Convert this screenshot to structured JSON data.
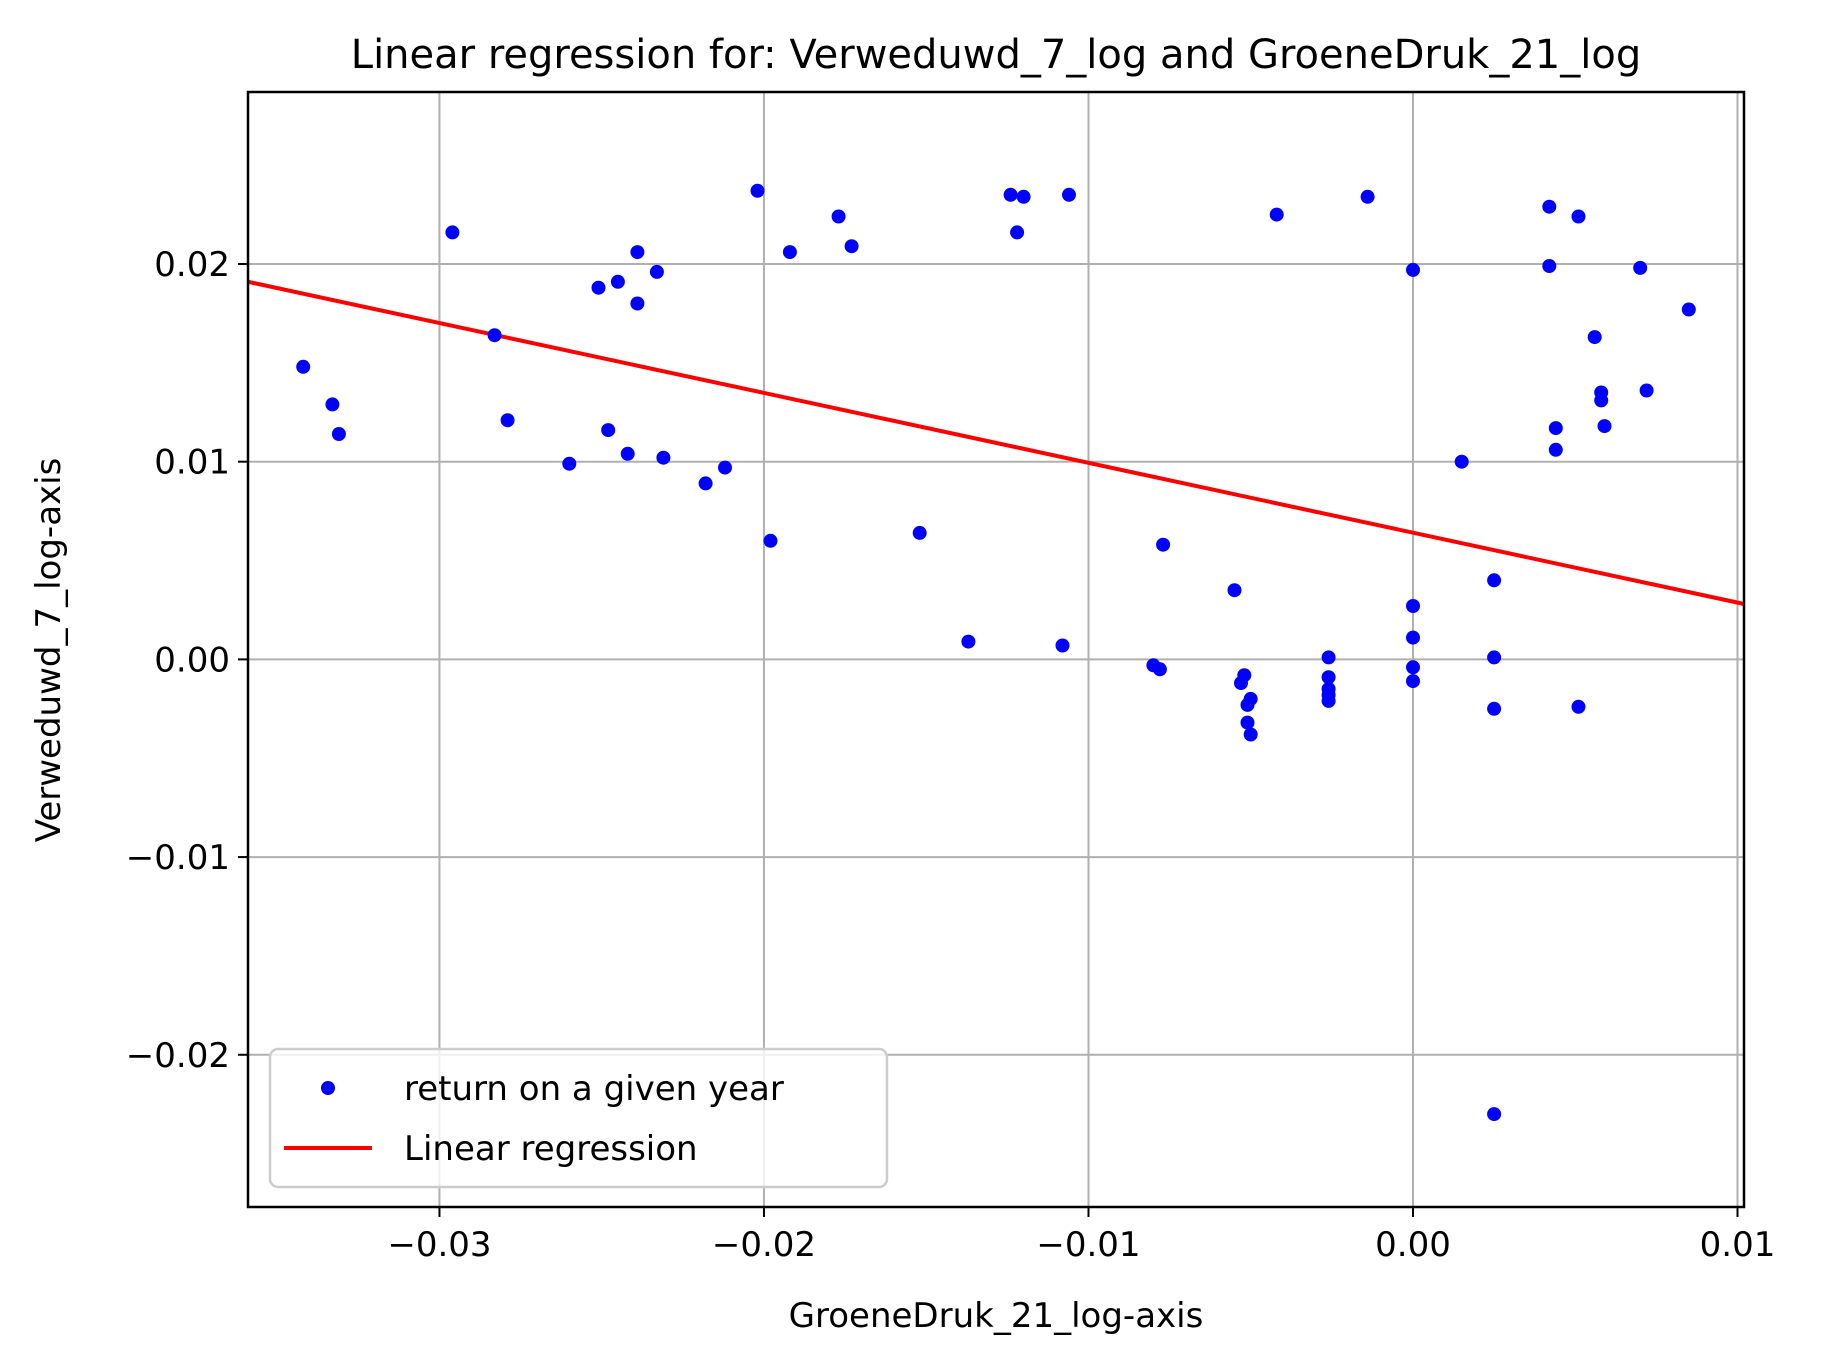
{
  "chart_data": {
    "type": "scatter",
    "title": "Linear regression for: Verweduwd_7_log and GroeneDruk_21_log",
    "xlabel": "GroeneDruk_21_log-axis",
    "ylabel": "Verweduwd_7_log-axis",
    "xlim": [
      -0.0359,
      0.0102
    ],
    "ylim": [
      -0.0277,
      0.0287
    ],
    "xticks": [
      -0.03,
      -0.02,
      -0.01,
      0.0,
      0.01
    ],
    "xtick_labels": [
      "−0.03",
      "−0.02",
      "−0.01",
      "0.00",
      "0.01"
    ],
    "yticks": [
      -0.02,
      -0.01,
      0.0,
      0.01,
      0.02
    ],
    "ytick_labels": [
      "−0.02",
      "−0.01",
      "0.00",
      "0.01",
      "0.02"
    ],
    "grid": true,
    "legend_position": "lower-left",
    "series": [
      {
        "name": "return on a given year",
        "kind": "scatter",
        "color": "#0000ff",
        "points": [
          [
            -0.0342,
            0.0148
          ],
          [
            -0.0333,
            0.0129
          ],
          [
            -0.0331,
            0.0114
          ],
          [
            -0.0296,
            0.0216
          ],
          [
            -0.0283,
            0.0164
          ],
          [
            -0.0279,
            0.0121
          ],
          [
            -0.026,
            0.0099
          ],
          [
            -0.0251,
            0.0188
          ],
          [
            -0.0248,
            0.0116
          ],
          [
            -0.0245,
            0.0191
          ],
          [
            -0.0242,
            0.0104
          ],
          [
            -0.0239,
            0.018
          ],
          [
            -0.0239,
            0.0206
          ],
          [
            -0.0233,
            0.0196
          ],
          [
            -0.0231,
            0.0102
          ],
          [
            -0.0218,
            0.0089
          ],
          [
            -0.0212,
            0.0097
          ],
          [
            -0.0202,
            0.0237
          ],
          [
            -0.0198,
            0.006
          ],
          [
            -0.0192,
            0.0206
          ],
          [
            -0.0177,
            0.0224
          ],
          [
            -0.0173,
            0.0209
          ],
          [
            -0.0152,
            0.0064
          ],
          [
            -0.0137,
            0.0009
          ],
          [
            -0.0124,
            0.0235
          ],
          [
            -0.0122,
            0.0216
          ],
          [
            -0.012,
            0.0234
          ],
          [
            -0.0108,
            0.0007
          ],
          [
            -0.0106,
            0.0235
          ],
          [
            -0.008,
            -0.0003
          ],
          [
            -0.0078,
            -0.0005
          ],
          [
            -0.0077,
            0.0058
          ],
          [
            -0.0055,
            0.0035
          ],
          [
            -0.0053,
            -0.0012
          ],
          [
            -0.0052,
            -0.0008
          ],
          [
            -0.0051,
            -0.0032
          ],
          [
            -0.0051,
            -0.0023
          ],
          [
            -0.005,
            -0.002
          ],
          [
            -0.005,
            -0.0038
          ],
          [
            -0.0042,
            0.0225
          ],
          [
            -0.0026,
            0.0001
          ],
          [
            -0.0026,
            -0.0009
          ],
          [
            -0.0026,
            -0.0015
          ],
          [
            -0.0026,
            -0.0018
          ],
          [
            -0.0026,
            -0.0021
          ],
          [
            -0.0014,
            0.0234
          ],
          [
            0.0,
            0.0197
          ],
          [
            0.0,
            0.0027
          ],
          [
            0.0,
            0.0011
          ],
          [
            0.0,
            -0.0004
          ],
          [
            0.0,
            -0.0011
          ],
          [
            0.0015,
            0.01
          ],
          [
            0.0025,
            0.004
          ],
          [
            0.0025,
            0.0001
          ],
          [
            0.0025,
            -0.0025
          ],
          [
            0.0025,
            -0.023
          ],
          [
            0.0042,
            0.0229
          ],
          [
            0.0042,
            0.0199
          ],
          [
            0.0044,
            0.0117
          ],
          [
            0.0044,
            0.0106
          ],
          [
            0.0051,
            0.0224
          ],
          [
            0.0051,
            -0.0024
          ],
          [
            0.0056,
            0.0163
          ],
          [
            0.0058,
            0.0135
          ],
          [
            0.0058,
            0.0131
          ],
          [
            0.0059,
            0.0118
          ],
          [
            0.007,
            0.0198
          ],
          [
            0.0072,
            0.0136
          ],
          [
            0.0085,
            0.0177
          ]
        ]
      },
      {
        "name": "Linear regression",
        "kind": "line",
        "color": "#ff0000",
        "points": [
          [
            -0.0359,
            0.0191
          ],
          [
            0.0102,
            0.0028
          ]
        ]
      }
    ]
  }
}
